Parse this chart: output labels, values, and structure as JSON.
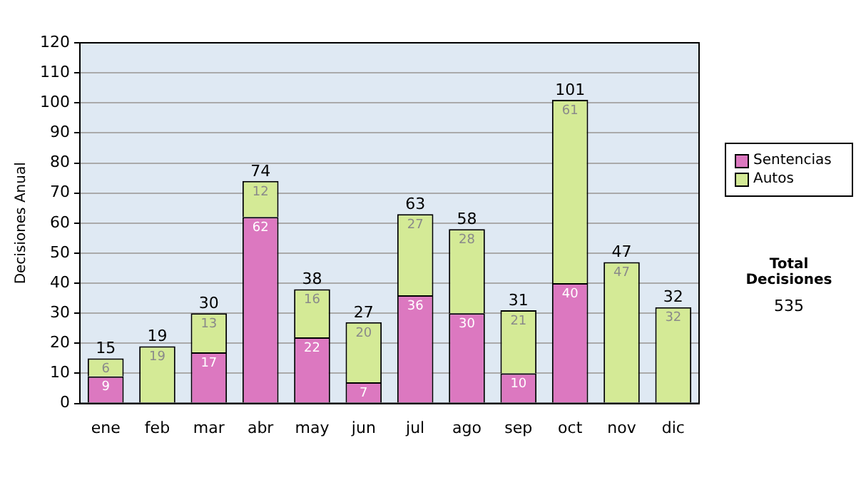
{
  "chart_data": {
    "type": "bar",
    "stacked": true,
    "ylabel": "Decisiones Anual",
    "categories": [
      "ene",
      "feb",
      "mar",
      "abr",
      "may",
      "jun",
      "jul",
      "ago",
      "sep",
      "oct",
      "nov",
      "dic"
    ],
    "series": [
      {
        "name": "Sentencias",
        "color": "#dc78c0",
        "values": [
          9,
          0,
          17,
          62,
          22,
          7,
          36,
          30,
          10,
          40,
          0,
          0
        ],
        "value_labels": [
          "9",
          null,
          "17",
          "62",
          "22",
          "7",
          "36",
          "30",
          "10",
          "40",
          null,
          null
        ]
      },
      {
        "name": "Autos",
        "color": "#d4ea96",
        "values": [
          6,
          19,
          13,
          12,
          16,
          20,
          27,
          28,
          21,
          61,
          47,
          32
        ],
        "value_labels": [
          "6",
          "19",
          "13",
          "12",
          "16",
          "20",
          "27",
          "28",
          "21",
          "61",
          "47",
          "32"
        ]
      }
    ],
    "totals": [
      "15",
      "19",
      "30",
      "74",
      "38",
      "27",
      "63",
      "58",
      "31",
      "101",
      "47",
      "32"
    ],
    "ylim": [
      0,
      120
    ],
    "yticks": [
      0,
      10,
      20,
      30,
      40,
      50,
      60,
      70,
      80,
      90,
      100,
      110,
      120
    ],
    "grid": "y",
    "legend": "right",
    "annotations": [
      "Total Decisiones",
      "535"
    ]
  }
}
